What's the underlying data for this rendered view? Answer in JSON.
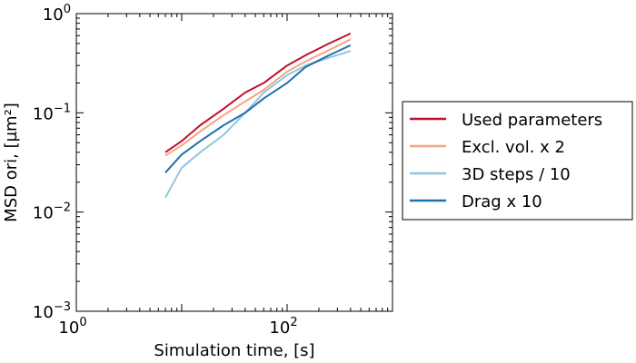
{
  "chart_data": {
    "type": "line",
    "xlabel": "Simulation time, [s]",
    "ylabel": "MSD ori, [µm²]",
    "xscale": "log",
    "yscale": "log",
    "xlim": [
      1,
      1000
    ],
    "ylim": [
      0.001,
      1
    ],
    "x_ticks": [
      {
        "value": 1,
        "base": "10",
        "exp": "0"
      },
      {
        "value": 100,
        "base": "10",
        "exp": "2"
      }
    ],
    "y_ticks": [
      {
        "value": 1,
        "base": "10",
        "exp": "0"
      },
      {
        "value": 0.1,
        "base": "10",
        "exp": "−1"
      },
      {
        "value": 0.01,
        "base": "10",
        "exp": "−2"
      },
      {
        "value": 0.001,
        "base": "10",
        "exp": "−3"
      }
    ],
    "legend_position": "right",
    "series": [
      {
        "name": "Used parameters",
        "color": "#c0102b",
        "x": [
          7,
          10,
          15,
          25,
          40,
          60,
          100,
          150,
          250,
          400
        ],
        "y": [
          0.04,
          0.052,
          0.075,
          0.11,
          0.16,
          0.2,
          0.3,
          0.38,
          0.5,
          0.63
        ]
      },
      {
        "name": "Excl. vol. x 2",
        "color": "#f4a582",
        "x": [
          7,
          10,
          15,
          25,
          40,
          60,
          100,
          150,
          250,
          400
        ],
        "y": [
          0.037,
          0.047,
          0.065,
          0.095,
          0.13,
          0.17,
          0.26,
          0.33,
          0.43,
          0.55
        ]
      },
      {
        "name": "3D steps / 10",
        "color": "#92c5de",
        "x": [
          7,
          10,
          15,
          25,
          40,
          60,
          100,
          150,
          250,
          400
        ],
        "y": [
          0.014,
          0.028,
          0.04,
          0.06,
          0.1,
          0.16,
          0.24,
          0.3,
          0.36,
          0.42
        ]
      },
      {
        "name": "Drag x 10",
        "color": "#1f6fad",
        "x": [
          7,
          10,
          15,
          25,
          40,
          60,
          100,
          150,
          250,
          400
        ],
        "y": [
          0.025,
          0.038,
          0.052,
          0.075,
          0.1,
          0.14,
          0.2,
          0.29,
          0.38,
          0.48
        ]
      }
    ]
  }
}
